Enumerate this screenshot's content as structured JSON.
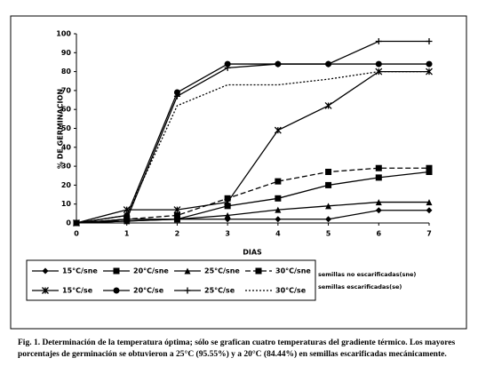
{
  "chart_data": {
    "type": "line",
    "ylabel": "% DE GERMINACION",
    "xlabel": "DIAS",
    "x": [
      0,
      1,
      2,
      3,
      4,
      5,
      6,
      7
    ],
    "xlim": [
      0,
      7
    ],
    "xticks": [
      0,
      1,
      2,
      3,
      4,
      5,
      6,
      7
    ],
    "ylim": [
      0,
      100
    ],
    "yticks": [
      0,
      10,
      20,
      30,
      40,
      50,
      60,
      70,
      80,
      90,
      100
    ],
    "grid": false,
    "series": [
      {
        "name": "15°C/sne",
        "color": "#000000",
        "marker": "diamond",
        "dash": "solid",
        "values": [
          0,
          1,
          2,
          2,
          2,
          2,
          6.7,
          6.7
        ]
      },
      {
        "name": "20°C/sne",
        "color": "#000000",
        "marker": "square",
        "dash": "solid",
        "values": [
          0,
          2,
          2,
          9,
          13,
          20,
          24,
          27
        ]
      },
      {
        "name": "25°C/sne",
        "color": "#000000",
        "marker": "triangle",
        "dash": "solid",
        "values": [
          0,
          1,
          2,
          4,
          7,
          9,
          11,
          11
        ]
      },
      {
        "name": "30°C/sne",
        "color": "#000000",
        "marker": "square",
        "dash": "dashed",
        "values": [
          0,
          2,
          4,
          13,
          22,
          27,
          29,
          29
        ]
      },
      {
        "name": "15°C/se",
        "color": "#000000",
        "marker": "asterisk",
        "dash": "solid",
        "values": [
          0,
          7,
          7,
          11,
          49,
          62,
          80,
          80
        ]
      },
      {
        "name": "20°C/se",
        "color": "#000000",
        "marker": "circle",
        "dash": "solid",
        "values": [
          0,
          4,
          69,
          84,
          84,
          84,
          84,
          84
        ]
      },
      {
        "name": "25°C/se",
        "color": "#000000",
        "marker": "plus",
        "dash": "solid",
        "values": [
          0,
          2,
          67,
          82,
          84,
          84,
          96,
          96
        ]
      },
      {
        "name": "30°C/se",
        "color": "#000000",
        "marker": "none",
        "dash": "dotted",
        "values": [
          0,
          4,
          62,
          73,
          73,
          76,
          80,
          80
        ]
      }
    ],
    "legend_notes": [
      "semillas no escarificadas(sne)",
      "semillas escarificadas(se)"
    ],
    "caption": "Fig. 1. Determinación de la temperatura óptima; sólo se grafican cuatro temperaturas del gradiente térmico. Los mayores porcentajes de germinación se obtuvieron a 25°C (95.55%) y a 20°C (84.44%) en semillas escarificadas mecánicamente."
  }
}
